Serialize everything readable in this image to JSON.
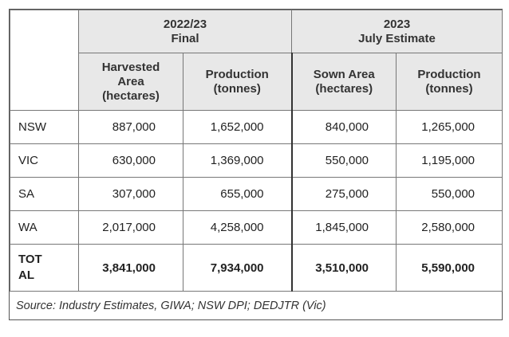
{
  "table": {
    "groups": [
      {
        "line1": "2022/23",
        "line2": "Final"
      },
      {
        "line1": "2023",
        "line2": "July Estimate"
      }
    ],
    "columns": [
      {
        "lines": [
          "Harvested",
          "Area",
          "(hectares)"
        ]
      },
      {
        "lines": [
          "Production",
          "(tonnes)"
        ]
      },
      {
        "lines": [
          "Sown Area",
          "(hectares)"
        ]
      },
      {
        "lines": [
          "Production",
          "(tonnes)"
        ]
      }
    ],
    "rows": [
      {
        "state": "NSW",
        "values": [
          "887,000",
          "1,652,000",
          "840,000",
          "1,265,000"
        ]
      },
      {
        "state": "VIC",
        "values": [
          "630,000",
          "1,369,000",
          "550,000",
          "1,195,000"
        ]
      },
      {
        "state": "SA",
        "values": [
          "307,000",
          "655,000",
          "275,000",
          "550,000"
        ]
      },
      {
        "state": "WA",
        "values": [
          "2,017,000",
          "4,258,000",
          "1,845,000",
          "2,580,000"
        ]
      }
    ],
    "total": {
      "label_line1": "TOT",
      "label_line2": "AL",
      "values": [
        "3,841,000",
        "7,934,000",
        "3,510,000",
        "5,590,000"
      ]
    },
    "source": "Source:  Industry Estimates, GIWA; NSW DPI; DEDJTR (Vic)"
  }
}
